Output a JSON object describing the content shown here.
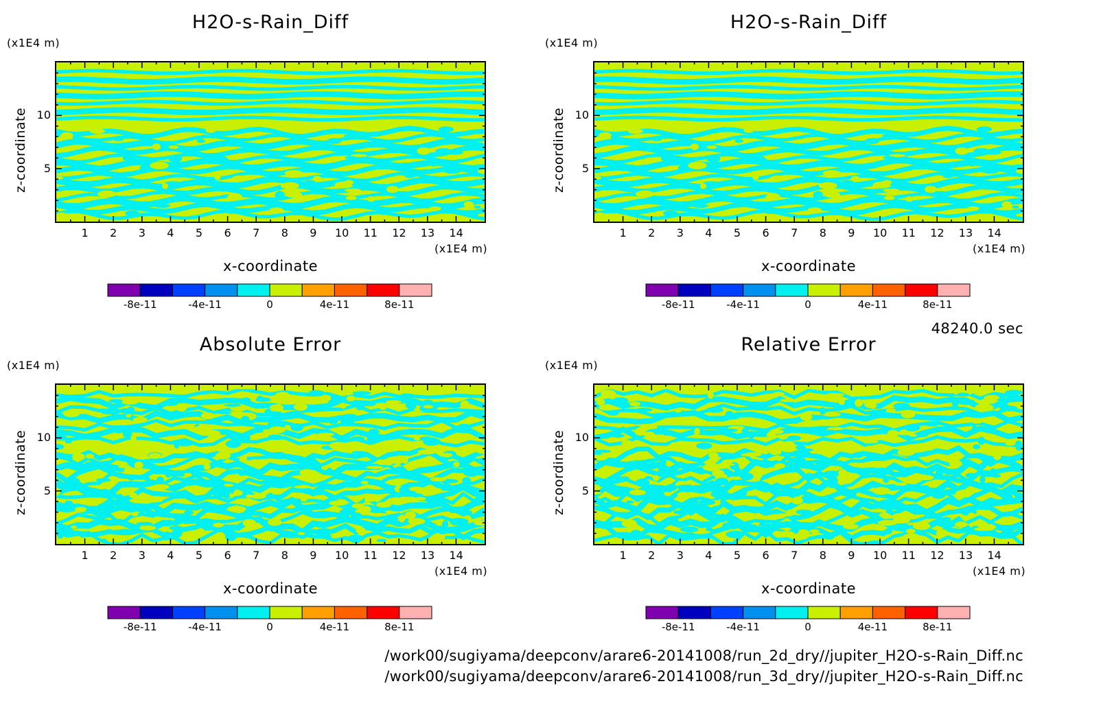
{
  "chart_data": [
    {
      "type": "heatmap",
      "title": "H2O-s-Rain_Diff",
      "xlabel": "x-coordinate",
      "ylabel": "z-coordinate",
      "x_unit": "(x1E4 m)",
      "y_unit": "(x1E4 m)",
      "xlim": [
        0,
        15
      ],
      "ylim": [
        0,
        15
      ],
      "x_ticks": [
        1,
        2,
        3,
        4,
        5,
        6,
        7,
        8,
        9,
        10,
        11,
        12,
        13,
        14
      ],
      "y_ticks": [
        5,
        10
      ],
      "colorbar": {
        "levels": [
          -1e-10,
          -8e-11,
          -6e-11,
          -4e-11,
          -2e-11,
          0,
          2e-11,
          4e-11,
          6e-11,
          8e-11,
          1e-10
        ],
        "colors": [
          "#8000b0",
          "#0000c0",
          "#0040ff",
          "#0090f0",
          "#00f0f0",
          "#c8f000",
          "#ffa000",
          "#ff6000",
          "#ff0000",
          "#ffb0b0"
        ],
        "tick_labels": [
          "-8e-11",
          "-4e-11",
          "0",
          "4e-11",
          "8e-11"
        ]
      },
      "pattern_seed": 1,
      "noise": 0.0
    },
    {
      "type": "heatmap",
      "title": "H2O-s-Rain_Diff",
      "xlabel": "x-coordinate",
      "ylabel": "z-coordinate",
      "x_unit": "(x1E4 m)",
      "y_unit": "(x1E4 m)",
      "xlim": [
        0,
        15
      ],
      "ylim": [
        0,
        15
      ],
      "x_ticks": [
        1,
        2,
        3,
        4,
        5,
        6,
        7,
        8,
        9,
        10,
        11,
        12,
        13,
        14
      ],
      "y_ticks": [
        5,
        10
      ],
      "colorbar": {
        "levels": [
          -1e-10,
          -8e-11,
          -6e-11,
          -4e-11,
          -2e-11,
          0,
          2e-11,
          4e-11,
          6e-11,
          8e-11,
          1e-10
        ],
        "colors": [
          "#8000b0",
          "#0000c0",
          "#0040ff",
          "#0090f0",
          "#00f0f0",
          "#c8f000",
          "#ffa000",
          "#ff6000",
          "#ff0000",
          "#ffb0b0"
        ],
        "tick_labels": [
          "-8e-11",
          "-4e-11",
          "0",
          "4e-11",
          "8e-11"
        ]
      },
      "pattern_seed": 1,
      "noise": 0.0
    },
    {
      "type": "heatmap",
      "title": "Absolute Error",
      "xlabel": "x-coordinate",
      "ylabel": "z-coordinate",
      "x_unit": "(x1E4 m)",
      "y_unit": "(x1E4 m)",
      "xlim": [
        0,
        15
      ],
      "ylim": [
        0,
        15
      ],
      "x_ticks": [
        1,
        2,
        3,
        4,
        5,
        6,
        7,
        8,
        9,
        10,
        11,
        12,
        13,
        14
      ],
      "y_ticks": [
        5,
        10
      ],
      "colorbar": {
        "levels": [
          -1e-10,
          -8e-11,
          -6e-11,
          -4e-11,
          -2e-11,
          0,
          2e-11,
          4e-11,
          6e-11,
          8e-11,
          1e-10
        ],
        "colors": [
          "#8000b0",
          "#0000c0",
          "#0040ff",
          "#0090f0",
          "#00f0f0",
          "#c8f000",
          "#ffa000",
          "#ff6000",
          "#ff0000",
          "#ffb0b0"
        ],
        "tick_labels": [
          "-8e-11",
          "-4e-11",
          "0",
          "4e-11",
          "8e-11"
        ]
      },
      "pattern_seed": 2,
      "noise": 0.9
    },
    {
      "type": "heatmap",
      "title": "Relative Error",
      "xlabel": "x-coordinate",
      "ylabel": "z-coordinate",
      "x_unit": "(x1E4 m)",
      "y_unit": "(x1E4 m)",
      "xlim": [
        0,
        15
      ],
      "ylim": [
        0,
        15
      ],
      "x_ticks": [
        1,
        2,
        3,
        4,
        5,
        6,
        7,
        8,
        9,
        10,
        11,
        12,
        13,
        14
      ],
      "y_ticks": [
        5,
        10
      ],
      "colorbar": {
        "levels": [
          -1e-10,
          -8e-11,
          -6e-11,
          -4e-11,
          -2e-11,
          0,
          2e-11,
          4e-11,
          6e-11,
          8e-11,
          1e-10
        ],
        "colors": [
          "#8000b0",
          "#0000c0",
          "#0040ff",
          "#0090f0",
          "#00f0f0",
          "#c8f000",
          "#ffa000",
          "#ff6000",
          "#ff0000",
          "#ffb0b0"
        ],
        "tick_labels": [
          "-8e-11",
          "-4e-11",
          "0",
          "4e-11",
          "8e-11"
        ]
      },
      "pattern_seed": 3,
      "noise": 1.0
    }
  ],
  "time_label": "48240.0 sec",
  "file_paths": [
    "/work00/sugiyama/deepconv/arare6-20141008/run_2d_dry//jupiter_H2O-s-Rain_Diff.nc",
    "/work00/sugiyama/deepconv/arare6-20141008/run_3d_dry//jupiter_H2O-s-Rain_Diff.nc"
  ]
}
